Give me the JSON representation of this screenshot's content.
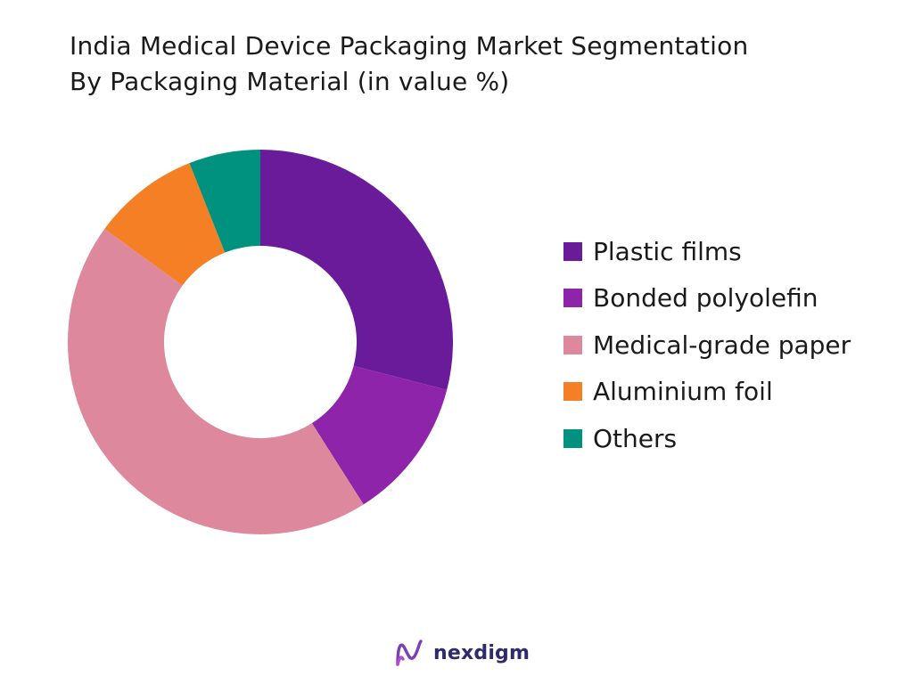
{
  "title_lines": [
    "India Medical Device Packaging Market Segmentation",
    "By Packaging Material (in value %)"
  ],
  "brand": {
    "name": "nexdigm",
    "logo_icon": "nexdigm-logo-icon"
  },
  "chart_data": {
    "type": "pie",
    "variant": "donut",
    "title": "India Medical Device Packaging Market Segmentation By Packaging Material (in value %)",
    "legend_position": "right",
    "series": [
      {
        "name": "Plastic films",
        "value": 29,
        "color": "#6a1b9a"
      },
      {
        "name": "Bonded polyolefin",
        "value": 12,
        "color": "#8e24aa"
      },
      {
        "name": "Medical-grade paper",
        "value": 44,
        "color": "#de889e"
      },
      {
        "name": "Aluminium foil",
        "value": 9,
        "color": "#f57f25"
      },
      {
        "name": "Others",
        "value": 6,
        "color": "#00917f"
      }
    ]
  }
}
